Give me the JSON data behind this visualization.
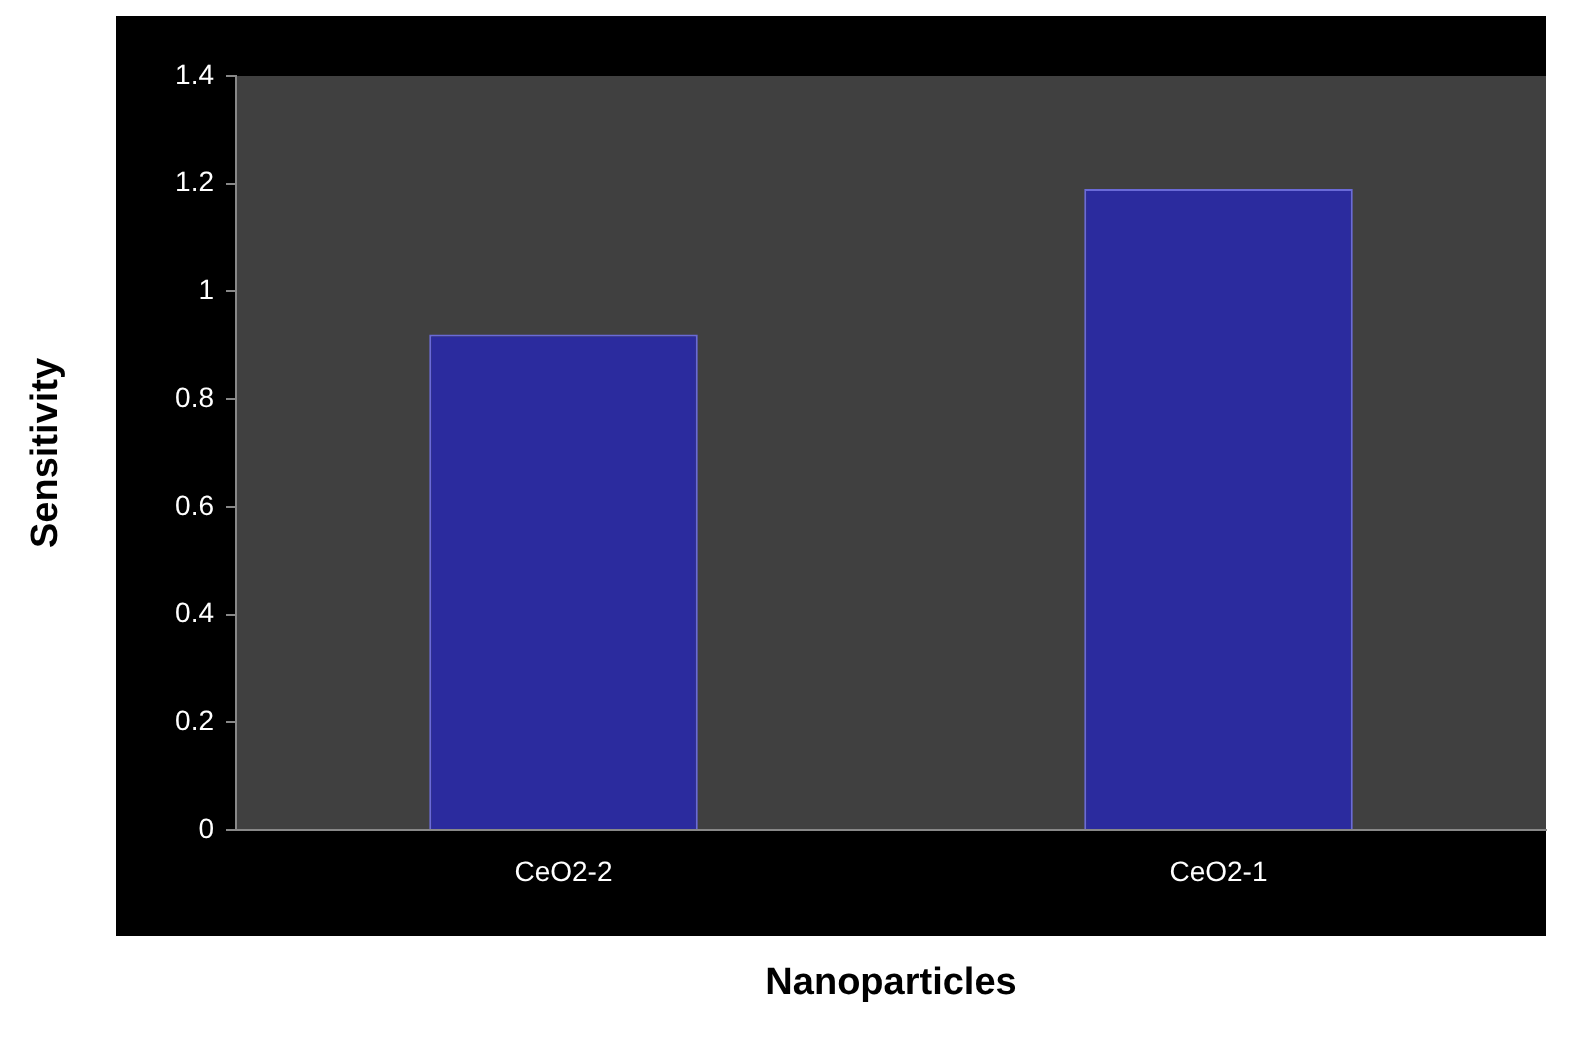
{
  "chart_data": {
    "type": "bar",
    "xlabel": "Nanoparticles",
    "ylabel": "Sensitivity",
    "categories": [
      "CeO2-2",
      "CeO2-1"
    ],
    "values": [
      0.92,
      1.19
    ],
    "color": "#2b2b9e",
    "ylim": [
      0,
      1.4
    ],
    "yticks": [
      0,
      0.2,
      0.4,
      0.6,
      0.8,
      1,
      1.2,
      1.4
    ],
    "grid": false,
    "legend": false
  }
}
